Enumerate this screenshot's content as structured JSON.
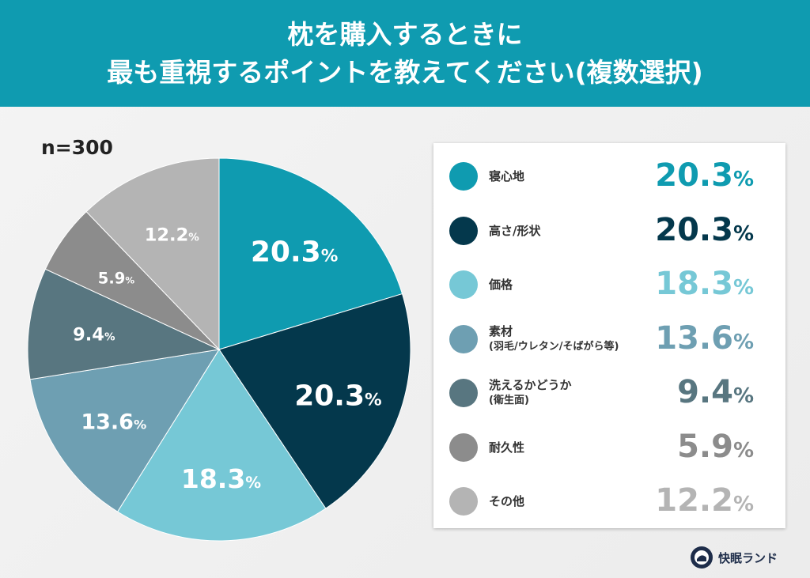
{
  "header": {
    "title_line1": "枕を購入するときに",
    "title_line2": "最も重視するポイントを教えてください(複数選択)"
  },
  "sample": "n=300",
  "brand": {
    "name": "快眠ランド"
  },
  "chart_data": {
    "type": "pie",
    "title": "枕を購入するときに最も重視するポイントを教えてください(複数選択)",
    "unit": "%",
    "start": "top, clockwise",
    "legend_placement": "right",
    "categories": [
      "寝心地",
      "高さ/形状",
      "価格",
      "素材",
      "洗えるかどうか",
      "耐久性",
      "その他"
    ],
    "sublabels": [
      "",
      "",
      "",
      "(羽毛/ウレタン/そばがら等)",
      "(衛生面)",
      "",
      ""
    ],
    "values": [
      20.3,
      20.3,
      18.3,
      13.6,
      9.4,
      5.9,
      12.2
    ],
    "labels": [
      "20.3",
      "20.3",
      "18.3",
      "13.6",
      "9.4",
      "5.9",
      "12.2"
    ],
    "colors": [
      "#0f9bb0",
      "#04384c",
      "#76c8d6",
      "#6e9fb2",
      "#587680",
      "#8c8c8c",
      "#b4b4b4"
    ]
  }
}
